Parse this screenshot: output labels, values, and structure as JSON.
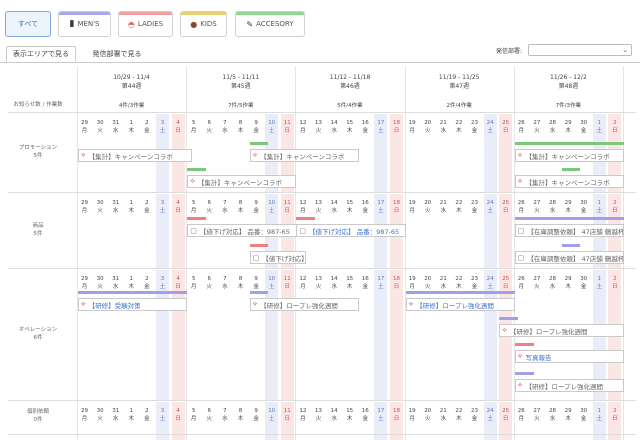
{
  "filters": [
    {
      "label": "すべて",
      "active": true,
      "color": ""
    },
    {
      "label": "MEN'S",
      "active": false,
      "color": "#a8a8e8",
      "icon": "suit-icon"
    },
    {
      "label": "LADIES",
      "active": false,
      "color": "#f0a0a0",
      "icon": "hat-icon"
    },
    {
      "label": "KIDS",
      "active": false,
      "color": "#e8d070",
      "icon": "bear-icon"
    },
    {
      "label": "ACCESORY",
      "active": false,
      "color": "#90d890",
      "icon": "pen-icon"
    }
  ],
  "view_tabs": [
    {
      "label": "表示エリアで見る",
      "active": true
    },
    {
      "label": "発信部署で見る",
      "active": false
    }
  ],
  "dept_label": "発信部署:",
  "dept_value": "",
  "header_label": "お知らせ数 / 作業数",
  "weeks": [
    {
      "range": "10/29 - 11/4",
      "num": "第44週",
      "count": "4件/3作業"
    },
    {
      "range": "11/5 - 11/11",
      "num": "第45週",
      "count": "7件/5作業"
    },
    {
      "range": "11/12 - 11/18",
      "num": "第46週",
      "count": "5件/4作業"
    },
    {
      "range": "11/19 - 11/25",
      "num": "第47週",
      "count": "2件/4作業"
    },
    {
      "range": "11/26 - 12/2",
      "num": "第48週",
      "count": "7件/3作業"
    }
  ],
  "days": [
    "29",
    "30",
    "31",
    "1",
    "2",
    "3",
    "4",
    "5",
    "6",
    "7",
    "8",
    "9",
    "10",
    "11",
    "12",
    "13",
    "14",
    "15",
    "16",
    "17",
    "18",
    "19",
    "20",
    "21",
    "22",
    "23",
    "24",
    "25",
    "26",
    "27",
    "28",
    "29",
    "30",
    "1",
    "2"
  ],
  "weekdays": [
    "月",
    "火",
    "水",
    "木",
    "金",
    "土",
    "日"
  ],
  "rows": [
    {
      "label": "プロモーション",
      "sub": "5件"
    },
    {
      "label": "商品",
      "sub": "5件"
    },
    {
      "label": "オペレーション",
      "sub": "6件"
    },
    {
      "label": "個別依頼",
      "sub": "0件"
    }
  ],
  "tasks": [
    {
      "label": "【集計】キャンペーンコラボ",
      "icon": "tag-icon",
      "bar": "#7cc77c"
    },
    {
      "label": "【集計】キャンペーンコラボ",
      "icon": "tag-icon",
      "bar": "#7cc77c"
    },
    {
      "label": "【集計】キャンペーンコラボ",
      "icon": "tag-icon",
      "bar": "#7cc77c"
    },
    {
      "label": "【集計】キャンペーンコラボ",
      "icon": "tag-icon",
      "bar": "#7cc77c"
    },
    {
      "label": "【集計】キャンペーンコラボ",
      "icon": "tag-icon",
      "bar": "#7cc77c"
    },
    {
      "label": "【値下げ対応】 品番：987-65",
      "icon": "doc-icon",
      "bar": "#f08080"
    },
    {
      "label": "【値下げ対応】 品番：987-65",
      "icon": "doc-icon",
      "bar": "#f08080",
      "blue": true
    },
    {
      "label": "【値下げ対応】 品番：987-65",
      "icon": "doc-icon",
      "bar": "#f08080"
    },
    {
      "label": "【在庫調整依頼】 47店舗 鶴越杯",
      "icon": "doc-icon",
      "bar": "#a0a0e8"
    },
    {
      "label": "【在庫調整依頼】 47店舗 鶴越杯",
      "icon": "doc-icon",
      "bar": "#a0a0e8"
    },
    {
      "label": "【研修】受験対策",
      "icon": "tag-icon",
      "bar": "#a0a0e8",
      "blue": true
    },
    {
      "label": "【研修】ロープレ強化週間",
      "icon": "tag-icon",
      "bar": "#a0a0e8"
    },
    {
      "label": "【研修】ロープレ強化週間",
      "icon": "tag-icon",
      "bar": "#a0a0e8",
      "blue": true
    },
    {
      "label": "【研修】ロープレ強化週間",
      "icon": "tag-icon",
      "bar": "#a0a0e8"
    },
    {
      "label": "写真報告",
      "icon": "tag-icon",
      "bar": "#f08080",
      "blue": true
    },
    {
      "label": "【研修】ロープレ強化週間",
      "icon": "tag-icon",
      "bar": "#a0a0e8"
    }
  ]
}
